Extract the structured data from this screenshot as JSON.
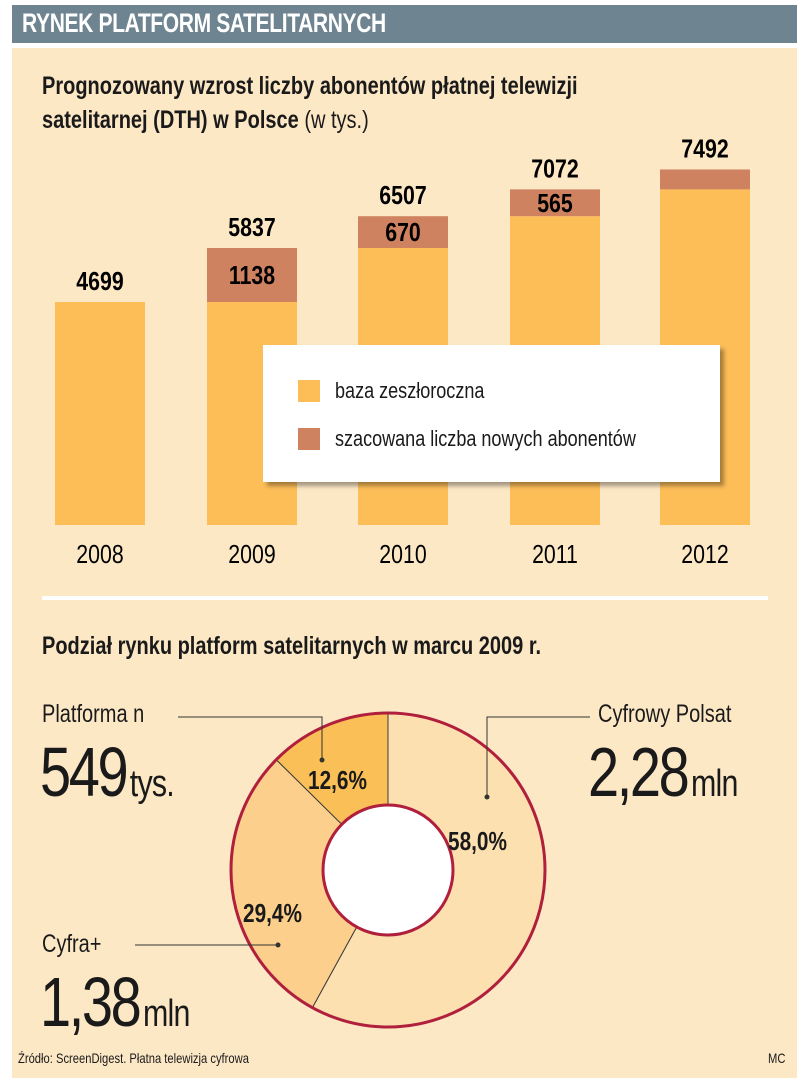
{
  "header": {
    "title": "RYNEK PLATFORM SATELITARNYCH"
  },
  "colors": {
    "base": "#fdbe58",
    "new": "#cf8260",
    "ring": "#b01f3c",
    "polsat": "#fde0b0",
    "cyfra": "#fcd08c",
    "platforma": "#fbbf57"
  },
  "chart_data": [
    {
      "type": "bar",
      "stacked": true,
      "title": "Prognozowany wzrost liczby abonentów płatnej telewizji satelitarnej (DTH) w Polsce",
      "title_line1": "Prognozowany wzrost liczby abonentów płatnej telewizji",
      "title_line2": "satelitarnej (DTH) w Polsce",
      "unit": "(w tys.)",
      "categories": [
        "2008",
        "2009",
        "2010",
        "2011",
        "2012"
      ],
      "series": [
        {
          "name": "baza zeszłoroczna",
          "values": [
            4699,
            4699,
            5837,
            6507,
            7072
          ]
        },
        {
          "name": "szacowana liczba nowych abonentów",
          "values": [
            0,
            1138,
            670,
            565,
            420
          ]
        }
      ],
      "totals": [
        4699,
        5837,
        6507,
        7072,
        7492
      ],
      "segment_labels": [
        "",
        "1138",
        "670",
        "565",
        ""
      ],
      "legend_position": "center-right",
      "ylim": [
        0,
        7600
      ]
    },
    {
      "type": "pie",
      "donut": true,
      "title": "Podział rynku platform satelitarnych w marcu 2009 r.",
      "slices": [
        {
          "name": "Cyfrowy Polsat",
          "percent": 58.0,
          "label": "58,0%",
          "amount": "2,28",
          "unit": "mln"
        },
        {
          "name": "Cyfra+",
          "percent": 29.4,
          "label": "29,4%",
          "amount": "1,38",
          "unit": "mln"
        },
        {
          "name": "Platforma n",
          "percent": 12.6,
          "label": "12,6%",
          "amount": "549",
          "unit": "tys."
        }
      ]
    }
  ],
  "footer": {
    "source": "Źródło: ScreenDigest. Płatna telewizja cyfrowa",
    "author": "MC"
  }
}
